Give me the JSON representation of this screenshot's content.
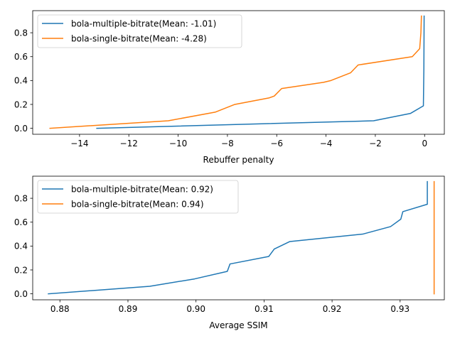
{
  "colors": {
    "blue": "#1f77b4",
    "orange": "#ff7f0e"
  },
  "chart_data": [
    {
      "type": "line",
      "title": "",
      "xlabel": "Rebuffer penalty",
      "ylabel": "",
      "xlim": [
        -15.9,
        0.8
      ],
      "ylim": [
        -0.05,
        0.985
      ],
      "xticks": [
        -14,
        -12,
        -10,
        -8,
        -6,
        -4,
        -2,
        0
      ],
      "xtick_labels": [
        "−14",
        "−12",
        "−10",
        "−8",
        "−6",
        "−4",
        "−2",
        "0"
      ],
      "yticks": [
        0.0,
        0.2,
        0.4,
        0.6,
        0.8
      ],
      "ytick_labels": [
        "0.0",
        "0.2",
        "0.4",
        "0.6",
        "0.8"
      ],
      "grid": false,
      "legend_position": "upper-left",
      "series": [
        {
          "name": "bola-multiple-bitrate(Mean: -1.01)",
          "color": "#1f77b4",
          "x": [
            -13.3,
            -2.07,
            -0.57,
            -0.05,
            -0.03,
            -0.02
          ],
          "y": [
            0.0,
            0.063,
            0.125,
            0.188,
            0.5,
            0.94
          ]
        },
        {
          "name": "bola-single-bitrate(Mean: -4.28)",
          "color": "#ff7f0e",
          "x": [
            -15.2,
            -10.4,
            -8.5,
            -7.7,
            -6.3,
            -6.1,
            -5.8,
            -4.1,
            -3.8,
            -3.0,
            -2.7,
            -0.5,
            -0.2,
            -0.15,
            -0.13
          ],
          "y": [
            0.0,
            0.063,
            0.135,
            0.2,
            0.255,
            0.27,
            0.333,
            0.385,
            0.4,
            0.465,
            0.53,
            0.6,
            0.667,
            0.8,
            0.94
          ]
        }
      ]
    },
    {
      "type": "line",
      "title": "",
      "xlabel": "Average SSIM",
      "ylabel": "",
      "xlim": [
        0.876,
        0.9365
      ],
      "ylim": [
        -0.05,
        0.985
      ],
      "xticks": [
        0.88,
        0.89,
        0.9,
        0.91,
        0.92,
        0.93
      ],
      "xtick_labels": [
        "0.88",
        "0.89",
        "0.90",
        "0.91",
        "0.92",
        "0.93"
      ],
      "yticks": [
        0.0,
        0.2,
        0.4,
        0.6,
        0.8
      ],
      "ytick_labels": [
        "0.0",
        "0.2",
        "0.4",
        "0.6",
        "0.8"
      ],
      "grid": false,
      "legend_position": "upper-left",
      "series": [
        {
          "name": "bola-multiple-bitrate(Mean: 0.92)",
          "color": "#1f77b4",
          "x": [
            0.8783,
            0.8932,
            0.8998,
            0.9046,
            0.905,
            0.9107,
            0.9115,
            0.9138,
            0.9245,
            0.9286,
            0.9301,
            0.9304,
            0.934,
            0.934
          ],
          "y": [
            0.0,
            0.063,
            0.125,
            0.188,
            0.25,
            0.313,
            0.375,
            0.438,
            0.5,
            0.563,
            0.625,
            0.688,
            0.75,
            0.94
          ]
        },
        {
          "name": "bola-single-bitrate(Mean: 0.94)",
          "color": "#ff7f0e",
          "x": [
            0.935,
            0.935
          ],
          "y": [
            0.0,
            0.94
          ]
        }
      ]
    }
  ]
}
